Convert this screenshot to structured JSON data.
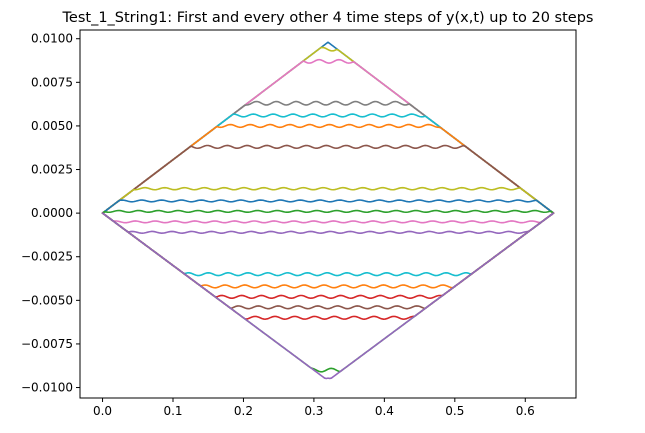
{
  "chart_data": {
    "type": "line",
    "title": "Test_1_String1: First and every other 4 time steps of y(x,t) up to 20 steps",
    "xlabel": "",
    "ylabel": "",
    "xlim": [
      -0.032,
      0.672
    ],
    "ylim": [
      -0.0106,
      0.0105
    ],
    "xticks": [
      0.0,
      0.1,
      0.2,
      0.3,
      0.4,
      0.5,
      0.6
    ],
    "xtick_labels": [
      "0.0",
      "0.1",
      "0.2",
      "0.3",
      "0.4",
      "0.5",
      "0.6"
    ],
    "yticks": [
      -0.01,
      -0.0075,
      -0.005,
      -0.0025,
      0.0,
      0.0025,
      0.005,
      0.0075,
      0.01
    ],
    "ytick_labels": [
      "−0.0100",
      "−0.0075",
      "−0.0050",
      "−0.0025",
      "0.0000",
      "0.0025",
      "0.0050",
      "0.0075",
      "0.0100"
    ],
    "grid": false,
    "legend": "none",
    "x_extent": [
      0.0,
      0.64
    ],
    "peak_x": 0.32,
    "series": [
      {
        "color": "#1f77b4",
        "plateau": 0.0098,
        "ripple": 0.00016
      },
      {
        "color": "#bcbd22",
        "plateau": 0.0094,
        "ripple": 0.0001
      },
      {
        "color": "#e377c2",
        "plateau": 0.0087,
        "ripple": 0.0001
      },
      {
        "color": "#7f7f7f",
        "plateau": 0.0063,
        "ripple": 0.0001
      },
      {
        "color": "#17becf",
        "plateau": 0.0056,
        "ripple": 8e-05
      },
      {
        "color": "#ff7f0e",
        "plateau": 0.005,
        "ripple": 8e-05
      },
      {
        "color": "#8c564b",
        "plateau": 0.0038,
        "ripple": 8e-05
      },
      {
        "color": "#bcbd22",
        "plateau": 0.0014,
        "ripple": 6e-05
      },
      {
        "color": "#1f77b4",
        "plateau": 0.0007,
        "ripple": 5e-05
      },
      {
        "color": "#2ca02c",
        "plateau": 0.0001,
        "ripple": 5e-05
      },
      {
        "color": "#e377c2",
        "plateau": -0.0005,
        "ripple": 5e-05
      },
      {
        "color": "#9467bd",
        "plateau": -0.0011,
        "ripple": 5e-05
      },
      {
        "color": "#17becf",
        "plateau": -0.0035,
        "ripple": 8e-05
      },
      {
        "color": "#ff7f0e",
        "plateau": -0.0042,
        "ripple": 8e-05
      },
      {
        "color": "#d62728",
        "plateau": -0.0048,
        "ripple": 8e-05
      },
      {
        "color": "#8c564b",
        "plateau": -0.0054,
        "ripple": 8e-05
      },
      {
        "color": "#d62728",
        "plateau": -0.006,
        "ripple": 8e-05
      },
      {
        "color": "#2ca02c",
        "plateau": -0.009,
        "ripple": 0.0001
      },
      {
        "color": "#9467bd",
        "plateau": -0.0096,
        "ripple": 0.00014
      }
    ]
  }
}
